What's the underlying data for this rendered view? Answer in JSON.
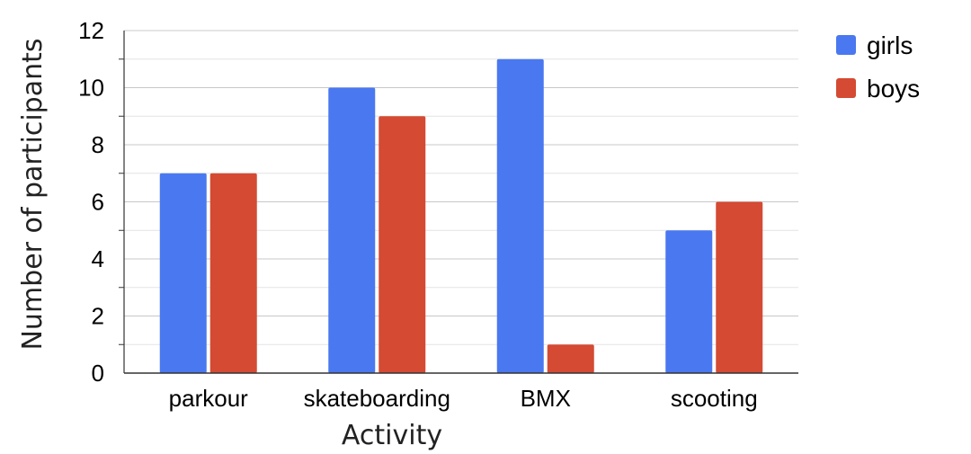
{
  "chart_data": {
    "type": "bar",
    "categories": [
      "parkour",
      "skateboarding",
      "BMX",
      "scooting"
    ],
    "series": [
      {
        "name": "girls",
        "values": [
          7,
          10,
          11,
          5
        ],
        "color": "#4a78f0"
      },
      {
        "name": "boys",
        "values": [
          7,
          9,
          1,
          6
        ],
        "color": "#d44a33"
      }
    ],
    "title": "",
    "xlabel": "Activity",
    "ylabel": "Number of participants",
    "ylim": [
      0,
      12
    ],
    "yticks": [
      0,
      2,
      4,
      6,
      8,
      10,
      12
    ],
    "grid": true,
    "legend": "top-right"
  }
}
